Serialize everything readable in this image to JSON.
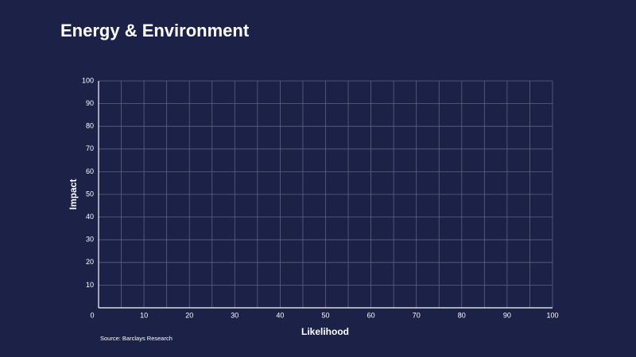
{
  "chart_data": {
    "type": "scatter",
    "title": "Energy & Environment",
    "x_label": "Likelihood",
    "y_label": "Impact",
    "source": "Source: Barclays Research",
    "xlim": [
      0,
      100
    ],
    "ylim": [
      0,
      100
    ],
    "xticks": [
      0,
      10,
      20,
      30,
      40,
      50,
      60,
      70,
      80,
      90,
      100
    ],
    "xminorticks": [
      5,
      15,
      25,
      35,
      45,
      55,
      65,
      75,
      85,
      95
    ],
    "yticks": [
      10,
      20,
      30,
      40,
      50,
      60,
      70,
      80,
      90,
      100
    ],
    "grid": true,
    "x": [],
    "values": []
  }
}
